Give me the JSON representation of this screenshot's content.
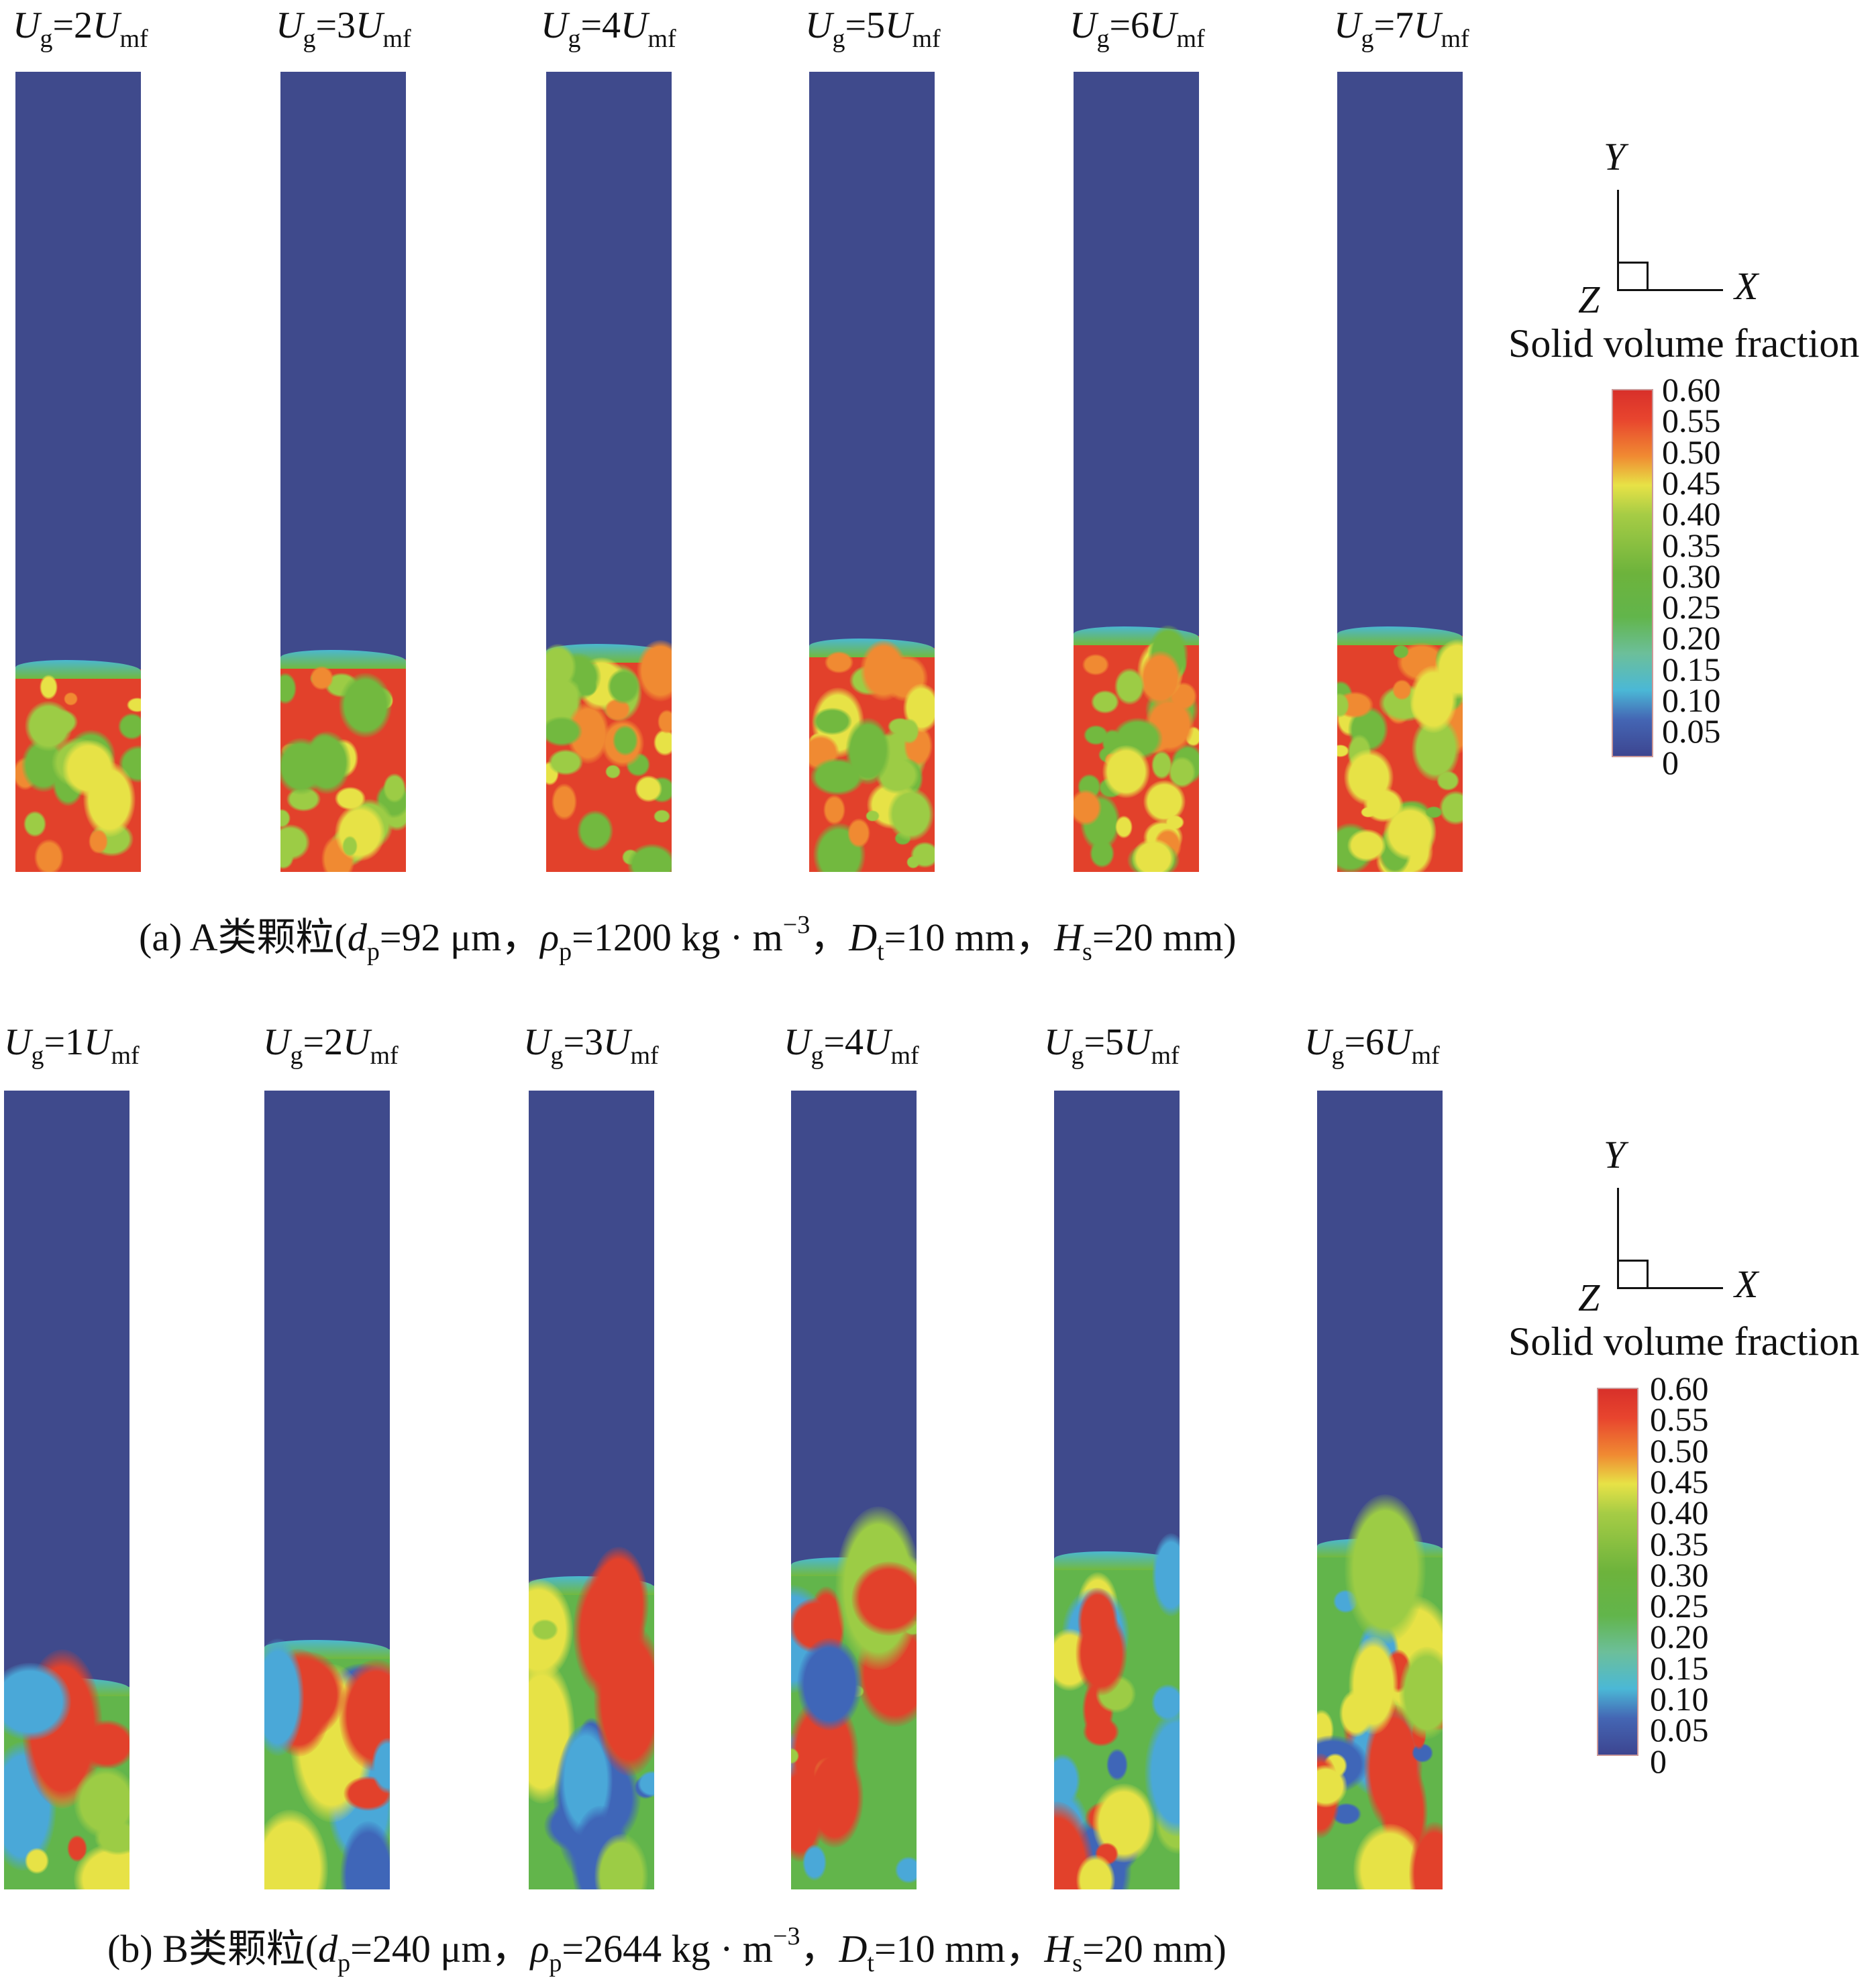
{
  "colors": {
    "gas_region": "#3f4a8c",
    "dense": "#e2412b",
    "medium": "#72b93f",
    "dilute": "#4aa8d8"
  },
  "panel_a": {
    "labels": [
      {
        "U1": "U",
        "g": "g",
        "eq": "=2",
        "U2": "U",
        "mf": "mf"
      },
      {
        "U1": "U",
        "g": "g",
        "eq": "=3",
        "U2": "U",
        "mf": "mf"
      },
      {
        "U1": "U",
        "g": "g",
        "eq": "=4",
        "U2": "U",
        "mf": "mf"
      },
      {
        "U1": "U",
        "g": "g",
        "eq": "=5",
        "U2": "U",
        "mf": "mf"
      },
      {
        "U1": "U",
        "g": "g",
        "eq": "=6",
        "U2": "U",
        "mf": "mf"
      },
      {
        "U1": "U",
        "g": "g",
        "eq": "=7",
        "U2": "U",
        "mf": "mf"
      }
    ],
    "caption": [
      {
        "t": "(a) A类颗粒(",
        "s": ""
      },
      {
        "t": "d",
        "s": "i"
      },
      {
        "t": "p",
        "s": "sub"
      },
      {
        "t": "=92 μm，",
        "s": ""
      },
      {
        "t": "ρ",
        "s": "i"
      },
      {
        "t": "p",
        "s": "sub"
      },
      {
        "t": "=1200 kg · m",
        "s": ""
      },
      {
        "t": "−3",
        "s": "sup"
      },
      {
        "t": "，",
        "s": ""
      },
      {
        "t": "D",
        "s": "i"
      },
      {
        "t": "t",
        "s": "sub"
      },
      {
        "t": "=10 mm，",
        "s": ""
      },
      {
        "t": "H",
        "s": "i"
      },
      {
        "t": "s",
        "s": "sub"
      },
      {
        "t": "=20 mm)",
        "s": ""
      }
    ]
  },
  "panel_b": {
    "labels": [
      {
        "U1": "U",
        "g": "g",
        "eq": "=1",
        "U2": "U",
        "mf": "mf"
      },
      {
        "U1": "U",
        "g": "g",
        "eq": "=2",
        "U2": "U",
        "mf": "mf"
      },
      {
        "U1": "U",
        "g": "g",
        "eq": "=3",
        "U2": "U",
        "mf": "mf"
      },
      {
        "U1": "U",
        "g": "g",
        "eq": "=4",
        "U2": "U",
        "mf": "mf"
      },
      {
        "U1": "U",
        "g": "g",
        "eq": "=5",
        "U2": "U",
        "mf": "mf"
      },
      {
        "U1": "U",
        "g": "g",
        "eq": "=6",
        "U2": "U",
        "mf": "mf"
      }
    ],
    "caption": [
      {
        "t": "(b) B类颗粒(",
        "s": ""
      },
      {
        "t": "d",
        "s": "i"
      },
      {
        "t": "p",
        "s": "sub"
      },
      {
        "t": "=240 μm，",
        "s": ""
      },
      {
        "t": "ρ",
        "s": "i"
      },
      {
        "t": "p",
        "s": "sub"
      },
      {
        "t": "=2644 kg · m",
        "s": ""
      },
      {
        "t": "−3",
        "s": "sup"
      },
      {
        "t": "，",
        "s": ""
      },
      {
        "t": "D",
        "s": "i"
      },
      {
        "t": "t",
        "s": "sub"
      },
      {
        "t": "=10 mm，",
        "s": ""
      },
      {
        "t": "H",
        "s": "i"
      },
      {
        "t": "s",
        "s": "sub"
      },
      {
        "t": "=20 mm)",
        "s": ""
      }
    ]
  },
  "legend": {
    "axes": {
      "y": "Y",
      "x": "X",
      "z": "Z"
    },
    "title": "Solid volume fraction",
    "ticks": [
      "0.60",
      "0.55",
      "0.50",
      "0.45",
      "0.40",
      "0.35",
      "0.30",
      "0.25",
      "0.20",
      "0.15",
      "0.10",
      "0.05",
      "0"
    ]
  }
}
